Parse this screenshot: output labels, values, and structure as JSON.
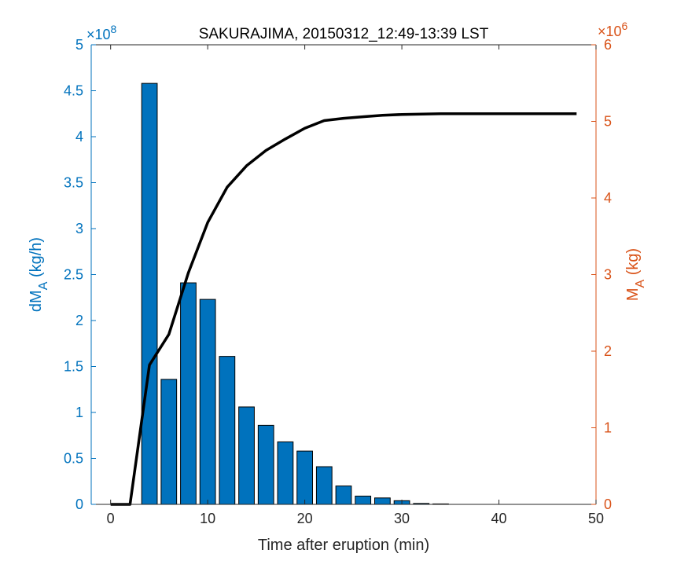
{
  "chart_data": {
    "type": "bar",
    "title": "SAKURAJIMA, 20150312_12:49-13:39 LST",
    "xlabel": "Time after eruption (min)",
    "ylabel_left": "dM_A (kg/h)",
    "ylabel_right": "M_A (kg)",
    "xlim": [
      -2,
      50
    ],
    "xticks": [
      0,
      10,
      20,
      30,
      40,
      50
    ],
    "ylim_left": [
      0,
      5
    ],
    "yticks_left": [
      0,
      0.5,
      1,
      1.5,
      2,
      2.5,
      3,
      3.5,
      4,
      4.5,
      5
    ],
    "ylim_right": [
      0,
      6
    ],
    "yticks_right": [
      0,
      1,
      2,
      3,
      4,
      5,
      6
    ],
    "exponent_left": "8",
    "exponent_right": "6",
    "bars": {
      "name": "dM_A",
      "axis": "left",
      "x": [
        4,
        6,
        8,
        10,
        12,
        14,
        16,
        18,
        20,
        22,
        24,
        26,
        28,
        30,
        32,
        34
      ],
      "values": [
        4.58,
        1.36,
        2.41,
        2.23,
        1.61,
        1.06,
        0.86,
        0.68,
        0.58,
        0.41,
        0.2,
        0.09,
        0.07,
        0.04,
        0.01,
        0.005
      ],
      "bar_width": 1.6,
      "color": "#0072BD"
    },
    "line": {
      "name": "M_A",
      "axis": "right",
      "x": [
        0,
        2,
        4,
        6,
        8,
        10,
        12,
        14,
        16,
        18,
        20,
        22,
        24,
        26,
        28,
        30,
        32,
        34,
        36,
        38,
        40,
        42,
        44,
        46,
        48
      ],
      "y": [
        0,
        0,
        1.82,
        2.22,
        3.02,
        3.68,
        4.14,
        4.42,
        4.62,
        4.77,
        4.91,
        5.01,
        5.04,
        5.06,
        5.08,
        5.09,
        5.095,
        5.1,
        5.1,
        5.1,
        5.1,
        5.1,
        5.1,
        5.1,
        5.1
      ],
      "color": "#000000"
    },
    "colors": {
      "left_axis": "#0072BD",
      "right_axis": "#D95319",
      "x_axis": "#262626"
    },
    "grid": false
  }
}
